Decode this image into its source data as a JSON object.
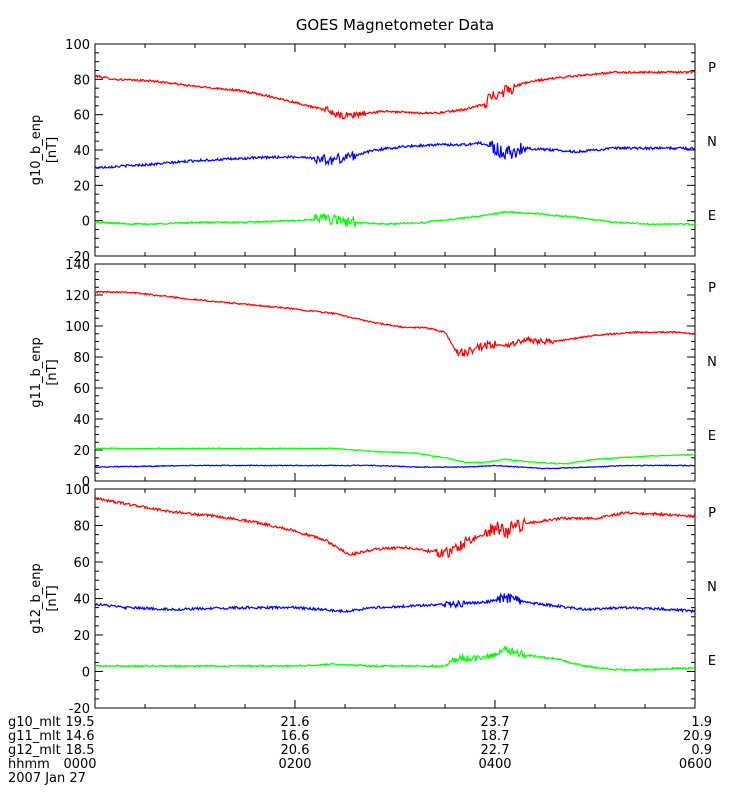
{
  "chart_data": {
    "type": "line",
    "title": "GOES Magnetometer Data",
    "time_hours": [
      0,
      6
    ],
    "panels": [
      {
        "ylabel": "g10_b_enp",
        "unit": "[nT]",
        "ylim": [
          -20,
          100
        ],
        "yticks": [
          -20,
          0,
          20,
          40,
          60,
          80,
          100
        ],
        "series": [
          {
            "name": "P",
            "color": "#ff0000",
            "noise": 0.6,
            "points": [
              [
                0,
                82
              ],
              [
                0.2,
                80
              ],
              [
                0.6,
                79
              ],
              [
                1.0,
                76
              ],
              [
                1.4,
                74
              ],
              [
                1.7,
                71
              ],
              [
                2.0,
                67
              ],
              [
                2.2,
                64
              ],
              [
                2.35,
                62
              ],
              [
                2.45,
                59
              ],
              [
                2.6,
                60
              ],
              [
                2.9,
                62
              ],
              [
                3.2,
                61
              ],
              [
                3.45,
                61
              ],
              [
                3.7,
                63
              ],
              [
                3.9,
                66
              ],
              [
                4.0,
                72
              ],
              [
                4.15,
                75
              ],
              [
                4.3,
                78
              ],
              [
                4.5,
                80
              ],
              [
                4.8,
                82
              ],
              [
                5.2,
                84
              ],
              [
                5.6,
                84
              ],
              [
                6.0,
                84
              ]
            ],
            "bursts": [
              [
                2.3,
                2.7,
                2
              ],
              [
                3.9,
                4.2,
                4
              ]
            ]
          },
          {
            "name": "N",
            "color": "#0000ff",
            "noise": 0.7,
            "points": [
              [
                0,
                30
              ],
              [
                0.3,
                31
              ],
              [
                0.6,
                32
              ],
              [
                1.0,
                34
              ],
              [
                1.4,
                35
              ],
              [
                1.8,
                36
              ],
              [
                2.1,
                36
              ],
              [
                2.35,
                34
              ],
              [
                2.6,
                37
              ],
              [
                2.8,
                40
              ],
              [
                3.1,
                42
              ],
              [
                3.4,
                43
              ],
              [
                3.7,
                43
              ],
              [
                3.85,
                44
              ],
              [
                4.0,
                41
              ],
              [
                4.1,
                38
              ],
              [
                4.3,
                41
              ],
              [
                4.6,
                40
              ],
              [
                4.8,
                39
              ],
              [
                5.2,
                41
              ],
              [
                5.6,
                41
              ],
              [
                6.0,
                41
              ]
            ],
            "bursts": [
              [
                2.2,
                2.6,
                3
              ],
              [
                3.95,
                4.3,
                4
              ]
            ]
          },
          {
            "name": "E",
            "color": "#00ff00",
            "noise": 0.5,
            "points": [
              [
                0,
                -1
              ],
              [
                0.5,
                -2
              ],
              [
                1.0,
                -1
              ],
              [
                1.5,
                -1
              ],
              [
                2.0,
                0
              ],
              [
                2.3,
                1
              ],
              [
                2.6,
                -1
              ],
              [
                2.9,
                -2
              ],
              [
                3.3,
                -1
              ],
              [
                3.6,
                1
              ],
              [
                3.9,
                3
              ],
              [
                4.1,
                5
              ],
              [
                4.4,
                4
              ],
              [
                4.8,
                2
              ],
              [
                5.2,
                -1
              ],
              [
                5.6,
                -2
              ],
              [
                6.0,
                -2
              ]
            ],
            "bursts": [
              [
                2.2,
                2.6,
                3
              ]
            ]
          }
        ]
      },
      {
        "ylabel": "g11_b_enp",
        "unit": "[nT]",
        "ylim": [
          0,
          140
        ],
        "yticks": [
          0,
          20,
          40,
          60,
          80,
          100,
          120,
          140
        ],
        "series": [
          {
            "name": "P",
            "color": "#ff0000",
            "noise": 0.5,
            "points": [
              [
                0,
                122
              ],
              [
                0.3,
                122
              ],
              [
                0.6,
                120
              ],
              [
                1.0,
                117
              ],
              [
                1.5,
                114
              ],
              [
                2.0,
                111
              ],
              [
                2.4,
                108
              ],
              [
                2.8,
                102
              ],
              [
                3.1,
                99
              ],
              [
                3.3,
                99
              ],
              [
                3.5,
                96
              ],
              [
                3.6,
                85
              ],
              [
                3.65,
                82
              ],
              [
                3.8,
                85
              ],
              [
                4.0,
                88
              ],
              [
                4.1,
                87
              ],
              [
                4.3,
                91
              ],
              [
                4.6,
                90
              ],
              [
                5.0,
                94
              ],
              [
                5.4,
                96
              ],
              [
                5.8,
                96
              ],
              [
                6.0,
                95
              ]
            ],
            "bursts": [
              [
                3.6,
                4.0,
                3
              ],
              [
                4.1,
                4.6,
                2
              ]
            ]
          },
          {
            "name": "N",
            "color": "#00ff00",
            "noise": 0.3,
            "points": [
              [
                0,
                21
              ],
              [
                0.5,
                21
              ],
              [
                1.0,
                21
              ],
              [
                1.5,
                21
              ],
              [
                2.0,
                21
              ],
              [
                2.4,
                21
              ],
              [
                2.8,
                19
              ],
              [
                3.2,
                18
              ],
              [
                3.5,
                15
              ],
              [
                3.7,
                12
              ],
              [
                3.9,
                12
              ],
              [
                4.1,
                14
              ],
              [
                4.4,
                12
              ],
              [
                4.7,
                11
              ],
              [
                5.0,
                14
              ],
              [
                5.5,
                16
              ],
              [
                6.0,
                17
              ]
            ],
            "bursts": []
          },
          {
            "name": "E",
            "color": "#0000ff",
            "noise": 0.3,
            "points": [
              [
                0,
                9
              ],
              [
                1.0,
                10
              ],
              [
                2.0,
                10
              ],
              [
                2.8,
                10
              ],
              [
                3.2,
                9
              ],
              [
                3.7,
                9
              ],
              [
                4.0,
                10
              ],
              [
                4.5,
                8
              ],
              [
                5.0,
                9
              ],
              [
                5.3,
                10
              ],
              [
                6.0,
                10
              ]
            ],
            "bursts": []
          }
        ]
      },
      {
        "ylabel": "g12_b_enp",
        "unit": "[nT]",
        "ylim": [
          -20,
          100
        ],
        "yticks": [
          -20,
          0,
          20,
          40,
          60,
          80,
          100
        ],
        "series": [
          {
            "name": "P",
            "color": "#ff0000",
            "noise": 0.7,
            "points": [
              [
                0,
                95
              ],
              [
                0.3,
                92
              ],
              [
                0.7,
                88
              ],
              [
                1.2,
                85
              ],
              [
                1.6,
                82
              ],
              [
                2.0,
                77
              ],
              [
                2.3,
                72
              ],
              [
                2.45,
                67
              ],
              [
                2.55,
                64
              ],
              [
                2.8,
                67
              ],
              [
                3.1,
                68
              ],
              [
                3.35,
                66
              ],
              [
                3.55,
                65
              ],
              [
                3.7,
                71
              ],
              [
                3.9,
                75
              ],
              [
                4.0,
                79
              ],
              [
                4.1,
                76
              ],
              [
                4.2,
                80
              ],
              [
                4.4,
                82
              ],
              [
                4.7,
                84
              ],
              [
                5.0,
                84
              ],
              [
                5.3,
                87
              ],
              [
                5.7,
                86
              ],
              [
                6.0,
                85
              ]
            ],
            "bursts": [
              [
                3.4,
                3.8,
                3
              ],
              [
                3.9,
                4.3,
                4
              ]
            ]
          },
          {
            "name": "N",
            "color": "#0000ff",
            "noise": 0.7,
            "points": [
              [
                0,
                37
              ],
              [
                0.3,
                35
              ],
              [
                0.8,
                34
              ],
              [
                1.5,
                35
              ],
              [
                2.0,
                35
              ],
              [
                2.5,
                33
              ],
              [
                2.8,
                35
              ],
              [
                3.2,
                36
              ],
              [
                3.6,
                37
              ],
              [
                3.9,
                38
              ],
              [
                4.1,
                40
              ],
              [
                4.3,
                38
              ],
              [
                4.6,
                36
              ],
              [
                4.9,
                34
              ],
              [
                5.3,
                35
              ],
              [
                5.8,
                34
              ],
              [
                6.0,
                33
              ]
            ],
            "bursts": [
              [
                3.5,
                3.7,
                2
              ],
              [
                4.0,
                4.25,
                3
              ]
            ]
          },
          {
            "name": "E",
            "color": "#00ff00",
            "noise": 0.5,
            "points": [
              [
                0,
                3
              ],
              [
                0.5,
                3
              ],
              [
                1.0,
                3
              ],
              [
                1.5,
                3
              ],
              [
                2.0,
                3
              ],
              [
                2.4,
                4
              ],
              [
                2.8,
                3
              ],
              [
                3.2,
                3
              ],
              [
                3.5,
                3
              ],
              [
                3.65,
                8
              ],
              [
                3.8,
                7
              ],
              [
                4.0,
                9
              ],
              [
                4.1,
                12
              ],
              [
                4.3,
                9
              ],
              [
                4.6,
                7
              ],
              [
                4.9,
                3
              ],
              [
                5.2,
                1
              ],
              [
                5.5,
                1
              ],
              [
                6.0,
                2
              ]
            ],
            "bursts": [
              [
                3.55,
                4.3,
                2
              ]
            ]
          }
        ]
      }
    ],
    "x_labels": {
      "rows": [
        "g10_mlt",
        "g11_mlt",
        "g12_mlt",
        "hhmm"
      ],
      "date": "2007 Jan 27",
      "ticks": [
        {
          "t": 0,
          "values": [
            "19.5",
            "14.6",
            "18.5",
            "0000"
          ]
        },
        {
          "t": 2,
          "values": [
            "21.6",
            "16.6",
            "20.6",
            "0200"
          ]
        },
        {
          "t": 4,
          "values": [
            "23.7",
            "18.7",
            "22.7",
            "0400"
          ]
        },
        {
          "t": 6,
          "values": [
            "1.9",
            "20.9",
            "0.9",
            "0600"
          ]
        }
      ]
    }
  }
}
